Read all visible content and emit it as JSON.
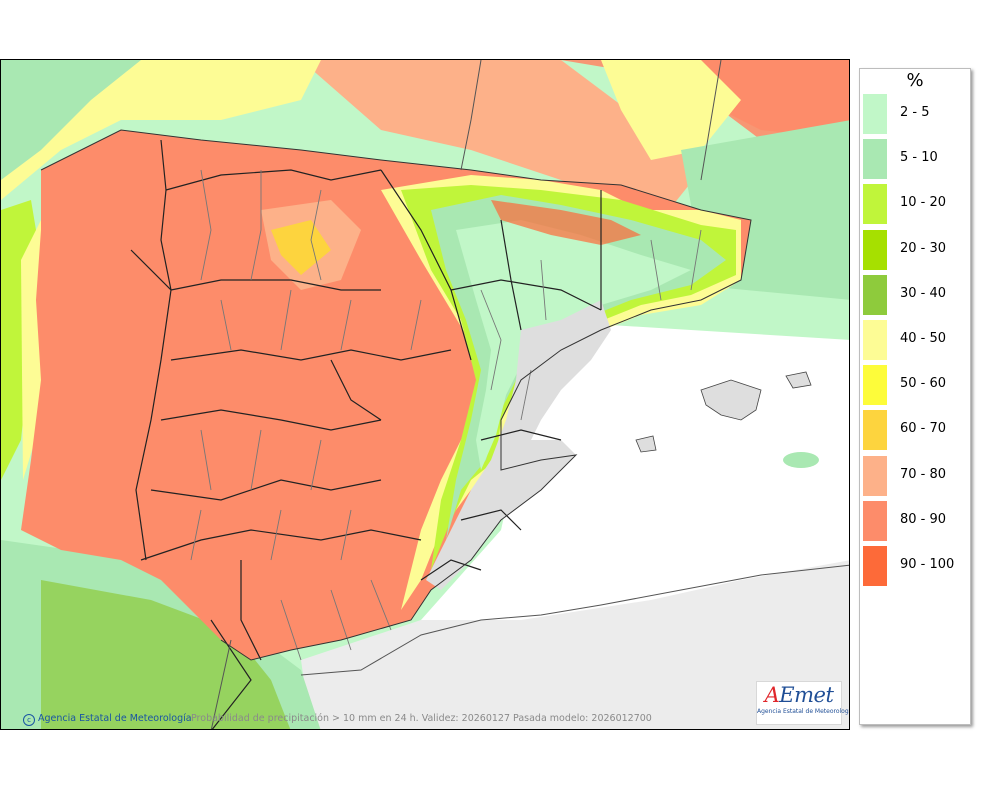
{
  "map": {
    "credit": "Agencia Estatal de Meteorología",
    "caption": "Probabilidad de precipitación > 10 mm en 24 h. Validez: 20260127 Pasada modelo: 2026012700"
  },
  "logo": {
    "word_ae": "A",
    "word_rest": "Emet",
    "sub": "Agencia Estatal de Meteorología"
  },
  "legend": {
    "unit": "%",
    "items": [
      {
        "label": "2 - 5",
        "color": "#c1f7c8"
      },
      {
        "label": "5 - 10",
        "color": "#a9e8b2"
      },
      {
        "label": "10 - 20",
        "color": "#c0f53a"
      },
      {
        "label": "20 - 30",
        "color": "#a6e000"
      },
      {
        "label": "30 - 40",
        "color": "#8ecb3c"
      },
      {
        "label": "40 - 50",
        "color": "#fdfc95"
      },
      {
        "label": "50 - 60",
        "color": "#fdfc3a"
      },
      {
        "label": "60 - 70",
        "color": "#fdd43e"
      },
      {
        "label": "70 - 80",
        "color": "#fdb189"
      },
      {
        "label": "80 - 90",
        "color": "#fd8c6a"
      },
      {
        "label": "90 - 100",
        "color": "#fd6a39"
      }
    ]
  }
}
